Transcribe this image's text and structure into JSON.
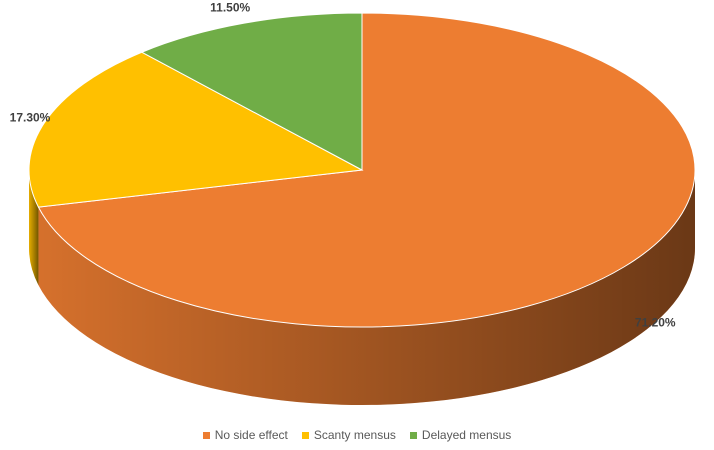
{
  "chart_data": {
    "type": "pie",
    "categories": [
      "No side effect",
      "Scanty mensus",
      "Delayed mensus"
    ],
    "values": [
      71.2,
      17.3,
      11.5
    ],
    "value_labels": [
      "71.20%",
      "17.30%",
      "11.50%"
    ],
    "colors": [
      "#ed7d31",
      "#ffc000",
      "#70ad47"
    ]
  }
}
